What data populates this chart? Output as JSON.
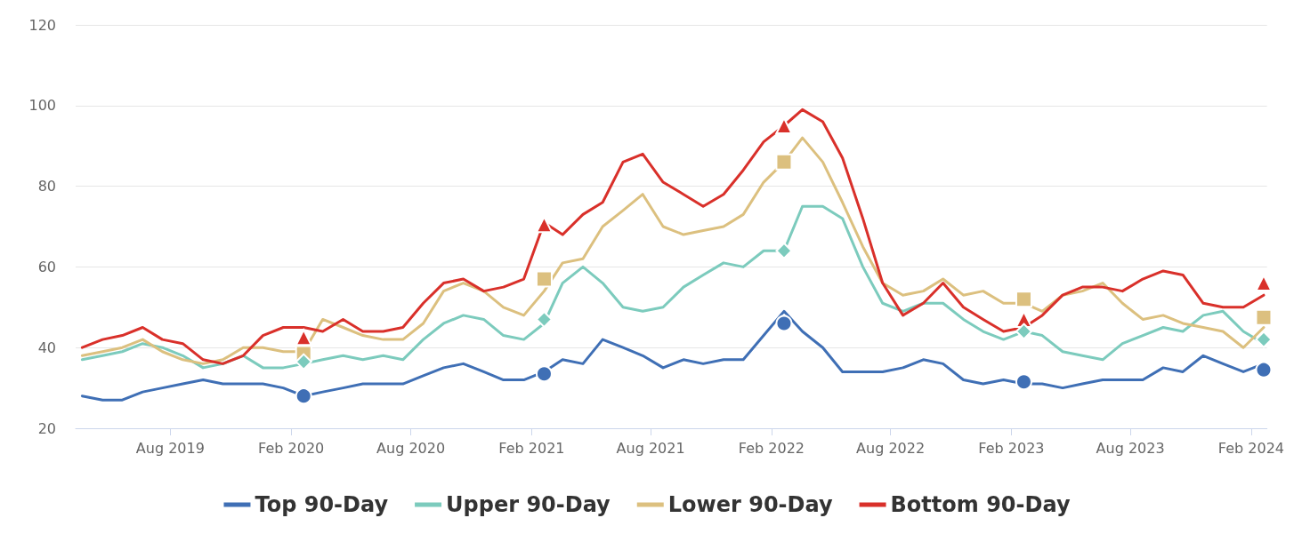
{
  "chart_data": {
    "type": "line",
    "x": [
      "2019-03-20",
      "2019-04-20",
      "2019-05-20",
      "2019-06-20",
      "2019-07-20",
      "2019-08-20",
      "2019-09-20",
      "2019-10-20",
      "2019-11-20",
      "2019-12-20",
      "2020-01-20",
      "2020-02-20",
      "2020-03-20",
      "2020-04-20",
      "2020-05-20",
      "2020-06-20",
      "2020-07-20",
      "2020-08-20",
      "2020-09-20",
      "2020-10-20",
      "2020-11-20",
      "2020-12-20",
      "2021-01-20",
      "2021-02-20",
      "2021-03-20",
      "2021-04-20",
      "2021-05-20",
      "2021-06-20",
      "2021-07-20",
      "2021-08-20",
      "2021-09-20",
      "2021-10-20",
      "2021-11-20",
      "2021-12-20",
      "2022-01-20",
      "2022-02-20",
      "2022-03-20",
      "2022-04-20",
      "2022-05-20",
      "2022-06-20",
      "2022-07-20",
      "2022-08-20",
      "2022-09-20",
      "2022-10-20",
      "2022-11-20",
      "2022-12-20",
      "2023-01-20",
      "2023-02-20",
      "2023-03-20",
      "2023-04-20",
      "2023-05-20",
      "2023-06-20",
      "2023-07-20",
      "2023-08-20",
      "2023-09-20",
      "2023-10-20",
      "2023-11-20",
      "2023-12-20",
      "2024-01-20",
      "2024-02-20"
    ],
    "series": [
      {
        "name": "Top 90-Day",
        "marker": "none",
        "color": "#3f6fb5",
        "values": [
          28,
          27,
          27,
          29,
          30,
          31,
          32,
          31,
          31,
          31,
          30,
          28,
          29,
          30,
          31,
          31,
          31,
          33,
          35,
          36,
          34,
          32,
          32,
          34,
          37,
          36,
          42,
          40,
          38,
          35,
          37,
          36,
          37,
          37,
          43,
          49,
          44,
          40,
          34,
          34,
          34,
          35,
          37,
          36,
          32,
          31,
          32,
          31,
          31,
          30,
          31,
          32,
          32,
          32,
          35,
          34,
          38,
          36,
          34,
          36
        ]
      },
      {
        "name": "Upper 90-Day",
        "marker": "none",
        "color": "#7ccbbd",
        "values": [
          37,
          38,
          39,
          41,
          40,
          38,
          35,
          36,
          38,
          35,
          35,
          36,
          37,
          38,
          37,
          38,
          37,
          42,
          46,
          48,
          47,
          43,
          42,
          46,
          56,
          60,
          56,
          50,
          49,
          50,
          55,
          58,
          61,
          60,
          64,
          64,
          75,
          75,
          72,
          60,
          51,
          49,
          51,
          51,
          47,
          44,
          42,
          44,
          43,
          39,
          38,
          37,
          41,
          43,
          45,
          44,
          48,
          49,
          44,
          41
        ]
      },
      {
        "name": "Lower 90-Day",
        "marker": "none",
        "color": "#dcc07f",
        "values": [
          38,
          39,
          40,
          42,
          39,
          37,
          36,
          37,
          40,
          40,
          39,
          39,
          47,
          45,
          43,
          42,
          42,
          46,
          54,
          56,
          54,
          50,
          48,
          54,
          61,
          62,
          70,
          74,
          78,
          70,
          68,
          69,
          70,
          73,
          81,
          86,
          92,
          86,
          76,
          65,
          56,
          53,
          54,
          57,
          53,
          54,
          51,
          51,
          49,
          53,
          54,
          56,
          51,
          47,
          48,
          46,
          45,
          44,
          40,
          45
        ]
      },
      {
        "name": "Bottom 90-Day",
        "marker": "none",
        "color": "#d9302a",
        "values": [
          40,
          42,
          43,
          45,
          42,
          41,
          37,
          36,
          38,
          43,
          45,
          45,
          44,
          47,
          44,
          44,
          45,
          51,
          56,
          57,
          54,
          55,
          57,
          71,
          68,
          73,
          76,
          86,
          88,
          81,
          78,
          75,
          78,
          84,
          91,
          95,
          99,
          96,
          87,
          72,
          56,
          48,
          51,
          56,
          50,
          47,
          44,
          45,
          48,
          53,
          55,
          55,
          54,
          57,
          59,
          58,
          51,
          50,
          50,
          53
        ]
      },
      {
        "type": "scatter",
        "marker": "circle",
        "color": "#3f6fb5",
        "x": [
          "2020-02-20",
          "2021-02-20",
          "2022-02-20",
          "2023-02-20",
          "2024-02-20"
        ],
        "values": [
          28,
          33.5,
          46,
          31.5,
          34.5
        ]
      },
      {
        "type": "scatter",
        "marker": "diamond",
        "color": "#7ccbbd",
        "x": [
          "2020-02-20",
          "2021-02-20",
          "2022-02-20",
          "2023-02-20",
          "2024-02-20"
        ],
        "values": [
          36.5,
          47,
          64,
          44,
          42
        ]
      },
      {
        "type": "scatter",
        "marker": "square",
        "color": "#dcc07f",
        "x": [
          "2020-02-20",
          "2021-02-20",
          "2022-02-20",
          "2023-02-20",
          "2024-02-20"
        ],
        "values": [
          38.5,
          57,
          86,
          52,
          47.5
        ]
      },
      {
        "type": "scatter",
        "marker": "triangle",
        "color": "#d9302a",
        "x": [
          "2020-02-20",
          "2021-02-20",
          "2022-02-20",
          "2023-02-20",
          "2024-02-20"
        ],
        "values": [
          42.5,
          70.5,
          95,
          47,
          56
        ]
      }
    ],
    "xlim": [
      "2019-03-10",
      "2024-02-25"
    ],
    "xticks": [
      {
        "value": "2019-08-01",
        "label": "Aug 2019"
      },
      {
        "value": "2020-02-01",
        "label": "Feb 2020"
      },
      {
        "value": "2020-08-01",
        "label": "Aug 2020"
      },
      {
        "value": "2021-02-01",
        "label": "Feb 2021"
      },
      {
        "value": "2021-08-01",
        "label": "Aug 2021"
      },
      {
        "value": "2022-02-01",
        "label": "Feb 2022"
      },
      {
        "value": "2022-08-01",
        "label": "Aug 2022"
      },
      {
        "value": "2023-02-01",
        "label": "Feb 2023"
      },
      {
        "value": "2023-08-01",
        "label": "Aug 2023"
      },
      {
        "value": "2024-02-01",
        "label": "Feb 2024"
      }
    ],
    "ylim": [
      20,
      120
    ],
    "yticks": [
      20,
      40,
      60,
      80,
      100,
      120
    ],
    "grid": "y",
    "legend": "bottom",
    "line_style": "solid"
  }
}
